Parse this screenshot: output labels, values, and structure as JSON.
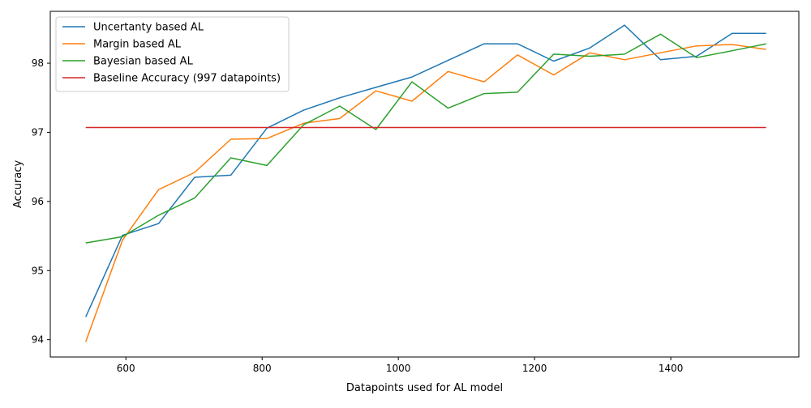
{
  "chart_data": {
    "type": "line",
    "title": "",
    "xlabel": "Datapoints used for AL model",
    "ylabel": "Accuracy",
    "xlim": [
      489,
      1588
    ],
    "ylim": [
      93.75,
      98.75
    ],
    "xticks": [
      600,
      800,
      1000,
      1200,
      1400
    ],
    "yticks": [
      94,
      95,
      96,
      97,
      98
    ],
    "grid": false,
    "legend_position": "top-left",
    "x": [
      541,
      595,
      648,
      701,
      754,
      807,
      861,
      914,
      967,
      1020,
      1073,
      1126,
      1175,
      1228,
      1281,
      1332,
      1385,
      1438,
      1490,
      1540
    ],
    "series": [
      {
        "name": "Uncertanty based AL",
        "color": "#1f77b4",
        "values": [
          94.33,
          95.51,
          95.68,
          96.35,
          96.38,
          97.06,
          97.32,
          97.5,
          97.65,
          97.8,
          98.04,
          98.28,
          98.28,
          98.03,
          98.22,
          98.55,
          98.05,
          98.1,
          98.43,
          98.43
        ]
      },
      {
        "name": "Margin based AL",
        "color": "#ff7f0e",
        "values": [
          93.97,
          95.44,
          96.17,
          96.42,
          96.9,
          96.91,
          97.13,
          97.2,
          97.6,
          97.45,
          97.88,
          97.73,
          98.12,
          97.83,
          98.15,
          98.05,
          98.15,
          98.25,
          98.27,
          98.2
        ]
      },
      {
        "name": "Bayesian based AL",
        "color": "#2ca02c",
        "values": [
          95.4,
          95.49,
          95.8,
          96.05,
          96.63,
          96.52,
          97.11,
          97.38,
          97.04,
          97.73,
          97.35,
          97.56,
          97.58,
          98.13,
          98.1,
          98.13,
          98.42,
          98.08,
          98.18,
          98.28
        ]
      },
      {
        "name": "Baseline Accuracy (997 datapoints)",
        "color": "#d62728",
        "values": [
          97.07,
          97.07,
          97.07,
          97.07,
          97.07,
          97.07,
          97.07,
          97.07,
          97.07,
          97.07,
          97.07,
          97.07,
          97.07,
          97.07,
          97.07,
          97.07,
          97.07,
          97.07,
          97.07,
          97.07
        ]
      }
    ]
  }
}
